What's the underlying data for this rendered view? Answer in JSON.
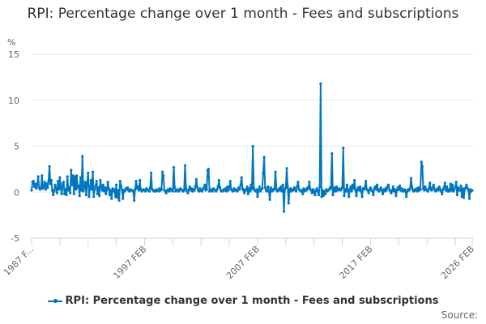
{
  "chart_data": {
    "type": "line",
    "title": "RPI: Percentage change over 1 month - Fees and subscriptions",
    "ylabel": "%",
    "ylim": [
      -5,
      15
    ],
    "yticks": [
      "15",
      "10",
      "5",
      "0",
      "-5"
    ],
    "ytick_values": [
      15,
      10,
      5,
      0,
      -5
    ],
    "x_start": "1987 FEB",
    "x_end": "2026 FEB",
    "frequency": "monthly",
    "xtick_labels": [
      "1987 F...",
      "1997 FEB",
      "2007 FEB",
      "2017 FEB",
      "2026 FEB"
    ],
    "grid": true,
    "legend_position": "bottom",
    "color": "#0077c0",
    "series": [
      {
        "name": "RPI: Percentage change over 1 month - Fees and subscriptions",
        "values": [
          0.2,
          1.1,
          1.2,
          0.6,
          0.9,
          0.4,
          0.8,
          1.7,
          0.5,
          0.3,
          0.4,
          1.8,
          0.4,
          0.6,
          1.1,
          0.3,
          0.9,
          0.5,
          1.2,
          2.8,
          0.9,
          1.3,
          0.2,
          -0.3,
          0.1,
          0.8,
          0.4,
          -0.1,
          1.2,
          0.3,
          1.6,
          0.5,
          -0.2,
          0.9,
          1.1,
          -0.2,
          0.3,
          -0.3,
          1.7,
          0.2,
          0.5,
          -0.1,
          2.4,
          0.8,
          1.8,
          -0.2,
          1.7,
          0.3,
          1.8,
          0.5,
          0.7,
          -0.4,
          1.6,
          0.2,
          3.9,
          0.1,
          0.6,
          1.1,
          -0.3,
          0.9,
          2.1,
          -0.5,
          0.4,
          1.3,
          0.3,
          2.2,
          -0.5,
          0.3,
          0.7,
          1.2,
          -0.2,
          0.5,
          -0.4,
          1.3,
          0.6,
          0.2,
          0.8,
          0.1,
          0.5,
          -0.2,
          0.3,
          1.1,
          0.4,
          -0.3,
          0.2,
          -0.7,
          0.4,
          0.1,
          0.3,
          -0.5,
          0.8,
          -0.6,
          0.2,
          -0.9,
          1.2,
          0.7,
          0.3,
          -0.7,
          0.2,
          0.1,
          0.4,
          0.3,
          0.5,
          0.2,
          0.1,
          0.3,
          0.2,
          0.2,
          0.1,
          -0.9,
          0.3,
          1.2,
          0.4,
          0.6,
          0.2,
          1.3,
          0.3,
          0.1,
          0.2,
          0.3,
          0.2,
          0.1,
          0.4,
          0.3,
          0.2,
          0.1,
          0.5,
          2.1,
          0.3,
          0.2,
          0.1,
          0.2,
          0.1,
          0.3,
          0.2,
          0.1,
          0.4,
          0.2,
          0.3,
          2.2,
          1.8,
          0.2,
          0.1,
          -0.1,
          0.2,
          0.3,
          0.1,
          0.4,
          0.2,
          0.3,
          0.1,
          2.7,
          0.5,
          0.1,
          0.2,
          0.3,
          0.1,
          0.2,
          0.4,
          0.3,
          0.2,
          0.1,
          0.2,
          2.9,
          0.4,
          0.1,
          -0.1,
          0.3,
          0.6,
          0.2,
          0.4,
          0.1,
          0.3,
          0.2,
          0.6,
          1.4,
          0.5,
          0.2,
          0.1,
          0.4,
          0.2,
          0.1,
          0.3,
          0.5,
          0.8,
          0.2,
          0.3,
          2.4,
          2.5,
          0.1,
          0.3,
          0.2,
          0.1,
          0.4,
          0.3,
          0.2,
          0.1,
          0.3,
          0.6,
          1.3,
          0.5,
          0.2,
          0.1,
          0.1,
          0.3,
          0.2,
          0.4,
          0.1,
          0.6,
          0.2,
          0.5,
          1.2,
          0.3,
          0.2,
          0.1,
          0.4,
          0.2,
          0.3,
          0.1,
          0.2,
          0.5,
          0.3,
          0.8,
          1.6,
          0.4,
          0.2,
          -0.1,
          0.3,
          0.2,
          0.6,
          -0.2,
          0.4,
          0.1,
          0.8,
          0.3,
          5.0,
          0.5,
          0.2,
          0.1,
          0.3,
          -0.5,
          0.2,
          0.6,
          0.1,
          0.3,
          0.4,
          2.1,
          3.8,
          0.5,
          0.2,
          0.1,
          0.6,
          0.2,
          -0.8,
          0.5,
          0.1,
          0.3,
          0.2,
          0.4,
          2.2,
          0.3,
          0.1,
          0.2,
          0.4,
          0.2,
          0.6,
          0.1,
          0.8,
          -2.1,
          0.3,
          0.5,
          2.6,
          0.6,
          -1.2,
          0.3,
          0.4,
          0.1,
          0.3,
          0.2,
          0.5,
          0.3,
          0.1,
          0.6,
          1.1,
          0.3,
          0.2,
          0.1,
          0.2,
          -0.2,
          0.4,
          0.1,
          0.3,
          0.2,
          0.5,
          0.4,
          1.1,
          0.3,
          0.2,
          -0.1,
          0.3,
          0.1,
          -0.3,
          0.2,
          0.4,
          0.1,
          -0.3,
          0.6,
          11.8,
          -0.5,
          0.2,
          -0.4,
          0.1,
          -0.2,
          0.3,
          0.1,
          0.2,
          0.3,
          0.5,
          0.4,
          4.2,
          -0.3,
          0.2,
          0.5,
          0.1,
          0.6,
          0.2,
          0.3,
          0.4,
          0.2,
          0.3,
          0.5,
          4.8,
          -0.4,
          0.3,
          0.1,
          0.8,
          0.2,
          -0.5,
          0.3,
          0.6,
          0.1,
          0.8,
          0.4,
          1.3,
          0.2,
          -0.4,
          0.3,
          0.5,
          0.2,
          0.6,
          0.1,
          -0.5,
          0.4,
          0.3,
          0.5,
          1.2,
          0.3,
          0.2,
          -0.1,
          0.3,
          0.5,
          0.2,
          0.1,
          -0.3,
          0.4,
          0.6,
          0.3,
          0.8,
          0.2,
          0.1,
          0.3,
          0.5,
          0.2,
          -0.2,
          0.3,
          0.1,
          0.4,
          0.2,
          0.6,
          0.8,
          0.3,
          0.1,
          -0.1,
          0.2,
          0.6,
          0.1,
          0.3,
          -0.4,
          0.2,
          0.5,
          0.3,
          0.7,
          0.2,
          0.4,
          0.1,
          0.1,
          0.3,
          0.2,
          -0.5,
          0.1,
          0.3,
          0.2,
          0.4,
          1.5,
          0.6,
          0.2,
          0.1,
          0.3,
          0.2,
          0.4,
          0.1,
          0.5,
          0.2,
          0.3,
          3.3,
          2.8,
          0.4,
          0.2,
          0.6,
          0.3,
          0.2,
          0.1,
          0.4,
          1.0,
          0.3,
          0.2,
          0.5,
          0.8,
          0.3,
          0.1,
          0.2,
          0.4,
          0.2,
          0.6,
          0.3,
          0.1,
          -0.2,
          0.3,
          0.5,
          1.0,
          0.2,
          0.6,
          0.1,
          0.3,
          0.1,
          0.9,
          0.2,
          0.8,
          0.1,
          0.3,
          0.6,
          1.1,
          -0.3,
          0.5,
          0.2,
          0.2,
          0.7,
          -0.5,
          0.4,
          -0.6,
          0.3,
          0.5,
          0.8,
          0.4,
          0.2,
          -0.7,
          0.3,
          0.1,
          0.2
        ]
      }
    ]
  },
  "source_label": "Source:"
}
